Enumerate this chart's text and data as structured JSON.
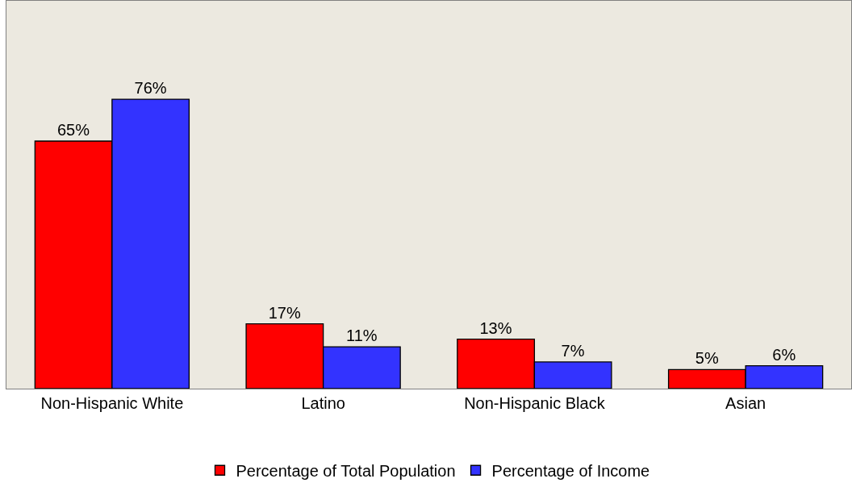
{
  "chart_data": {
    "type": "bar",
    "categories": [
      "Non-Hispanic White",
      "Latino",
      "Non-Hispanic Black",
      "Asian"
    ],
    "series": [
      {
        "name": "Percentage of Total Population",
        "color": "#ff0000",
        "values": [
          65,
          17,
          13,
          5
        ],
        "value_labels": [
          "65%",
          "17%",
          "13%",
          "5%"
        ]
      },
      {
        "name": "Percentage of Income",
        "color": "#3333ff",
        "values": [
          76,
          11,
          7,
          6
        ],
        "value_labels": [
          "76%",
          "11%",
          "7%",
          "6%"
        ]
      }
    ],
    "legend": "bottom",
    "grid": false
  }
}
